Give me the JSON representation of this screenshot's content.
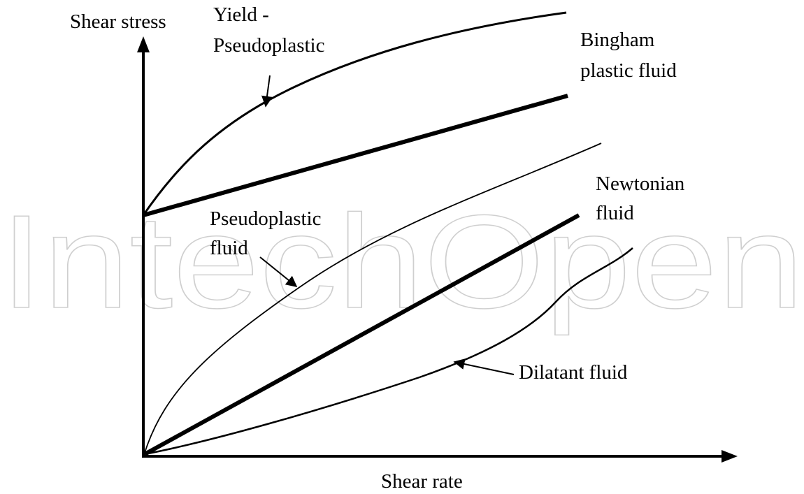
{
  "watermark": "IntechOpen",
  "axes": {
    "y_label": "Shear stress",
    "x_label": "Shear rate"
  },
  "curves": [
    {
      "label": [
        "Yield -",
        "Pseudoplastic"
      ]
    },
    {
      "label": [
        "Bingham",
        "plastic fluid"
      ]
    },
    {
      "label": [
        "Newtonian",
        "fluid"
      ]
    },
    {
      "label": [
        "Pseudoplastic",
        "fluid"
      ]
    },
    {
      "label": [
        "Dilatant fluid"
      ]
    }
  ]
}
